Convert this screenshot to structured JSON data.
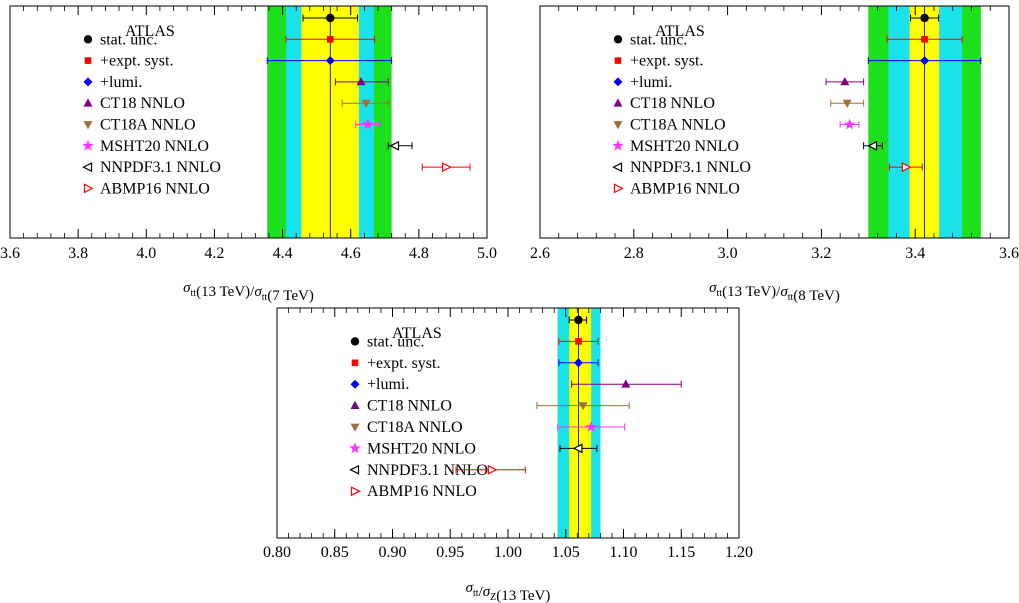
{
  "legend_labels": [
    "stat. unc.",
    "+expt. syst.",
    "+lumi.",
    "CT18 NNLO",
    "CT18A NNLO",
    "MSHT20 NNLO",
    "NNPDF3.1 NNLO",
    "ABMP16 NNLO"
  ],
  "colors": {
    "green": "#1be01b",
    "cyan": "#19e3e8",
    "yellow": "#ffff00",
    "stat": "#000000",
    "syst": "#ff0000",
    "lumi": "#0000ff",
    "ct18": "#800080",
    "ct18a": "#a0703a",
    "msht": "#ff33ff",
    "nnpdf": "#000000",
    "abmp": "#ff0000"
  },
  "chart_data": [
    {
      "type": "scatter",
      "title": "ATLAS",
      "xlabel": "σ_tt(13 TeV)/σ_tt(7 TeV)",
      "xlabel_parts": [
        "σ",
        "tt",
        "(13 TeV)/",
        "σ",
        "tt",
        "(7 TeV)"
      ],
      "xlim": [
        3.6,
        5.0
      ],
      "ticks": [
        3.6,
        3.8,
        4.0,
        4.2,
        4.4,
        4.6,
        4.8,
        5.0
      ],
      "tick_labels": [
        "3.6",
        "3.8",
        "4.0",
        "4.2",
        "4.4",
        "4.6",
        "4.8",
        "5.0"
      ],
      "bands": {
        "green": [
          4.355,
          4.72
        ],
        "cyan": [
          4.41,
          4.668
        ],
        "yellow": [
          4.455,
          4.624
        ]
      },
      "measurement": {
        "value": 4.54,
        "stat": [
          4.46,
          4.62
        ],
        "syst": [
          4.41,
          4.67
        ],
        "lumi": [
          4.355,
          4.72
        ]
      },
      "predictions": [
        {
          "name": "CT18 NNLO",
          "value": 4.63,
          "err": [
            4.555,
            4.71
          ]
        },
        {
          "name": "CT18A NNLO",
          "value": 4.645,
          "err": [
            4.575,
            4.71
          ]
        },
        {
          "name": "MSHT20 NNLO",
          "value": 4.65,
          "err": [
            4.615,
            4.685
          ]
        },
        {
          "name": "NNPDF3.1 NNLO",
          "value": 4.73,
          "err": [
            4.71,
            4.78
          ]
        },
        {
          "name": "ABMP16 NNLO",
          "value": 4.88,
          "err": [
            4.81,
            4.95
          ]
        }
      ]
    },
    {
      "type": "scatter",
      "title": "ATLAS",
      "xlabel": "σ_tt(13 TeV)/σ_tt(8 TeV)",
      "xlabel_parts": [
        "σ",
        "tt",
        "(13 TeV)/",
        "σ",
        "tt",
        "(8 TeV)"
      ],
      "xlim": [
        2.6,
        3.6
      ],
      "ticks": [
        2.6,
        2.8,
        3.0,
        3.2,
        3.4,
        3.6
      ],
      "tick_labels": [
        "2.6",
        "2.8",
        "3.0",
        "3.2",
        "3.4",
        "3.6"
      ],
      "bands": {
        "green": [
          3.3,
          3.54
        ],
        "cyan": [
          3.343,
          3.5
        ],
        "yellow": [
          3.388,
          3.451
        ]
      },
      "measurement": {
        "value": 3.42,
        "stat": [
          3.39,
          3.45
        ],
        "syst": [
          3.34,
          3.5
        ],
        "lumi": [
          3.3,
          3.54
        ]
      },
      "predictions": [
        {
          "name": "CT18 NNLO",
          "value": 3.25,
          "err": [
            3.21,
            3.29
          ]
        },
        {
          "name": "CT18A NNLO",
          "value": 3.255,
          "err": [
            3.22,
            3.29
          ]
        },
        {
          "name": "MSHT20 NNLO",
          "value": 3.26,
          "err": [
            3.24,
            3.28
          ]
        },
        {
          "name": "NNPDF3.1 NNLO",
          "value": 3.31,
          "err": [
            3.29,
            3.33
          ]
        },
        {
          "name": "ABMP16 NNLO",
          "value": 3.38,
          "err": [
            3.345,
            3.415
          ]
        }
      ]
    },
    {
      "type": "scatter",
      "title": "ATLAS",
      "xlabel": "σ_tt/σ_Z(13 TeV)",
      "xlabel_parts": [
        "σ",
        "tt",
        "/",
        "σ",
        "Z",
        "(13 TeV)"
      ],
      "xlim": [
        0.8,
        1.2
      ],
      "ticks": [
        0.8,
        0.85,
        0.9,
        0.95,
        1.0,
        1.05,
        1.1,
        1.15,
        1.2
      ],
      "tick_labels": [
        "0.80",
        "0.85",
        "0.90",
        "0.95",
        "1.00",
        "1.05",
        "1.10",
        "1.15",
        "1.20"
      ],
      "bands": {
        "green": [
          1.043,
          1.08
        ],
        "cyan": [
          1.043,
          1.08
        ],
        "yellow": [
          1.053,
          1.072
        ]
      },
      "measurement": {
        "value": 1.061,
        "stat": [
          1.053,
          1.068
        ],
        "syst": [
          1.044,
          1.078
        ],
        "lumi": [
          1.044,
          1.078
        ]
      },
      "predictions": [
        {
          "name": "CT18 NNLO",
          "value": 1.102,
          "err": [
            1.055,
            1.15
          ]
        },
        {
          "name": "CT18A NNLO",
          "value": 1.065,
          "err": [
            1.025,
            1.105
          ]
        },
        {
          "name": "MSHT20 NNLO",
          "value": 1.072,
          "err": [
            1.043,
            1.101
          ]
        },
        {
          "name": "NNPDF3.1 NNLO",
          "value": 1.061,
          "err": [
            1.045,
            1.077
          ]
        },
        {
          "name": "ABMP16 NNLO",
          "value": 0.986,
          "err": [
            0.955,
            1.015
          ]
        }
      ]
    }
  ]
}
